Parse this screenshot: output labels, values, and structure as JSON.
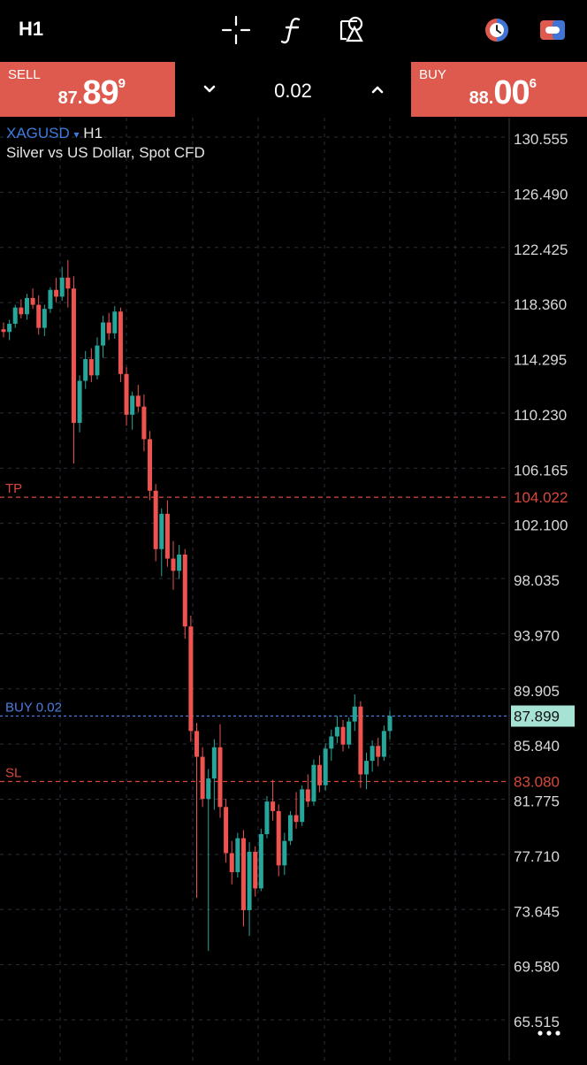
{
  "toolbar": {
    "timeframe": "H1",
    "icons": [
      "crosshair-icon",
      "function-icon",
      "objects-icon",
      "clock-icon",
      "toggle-icon"
    ]
  },
  "trade": {
    "sell_label": "SELL",
    "sell_price_main": "87.",
    "sell_price_big": "89",
    "sell_price_sup": "9",
    "buy_label": "BUY",
    "buy_price_main": "88.",
    "buy_price_big": "00",
    "buy_price_sup": "6",
    "volume": "0.02"
  },
  "chart": {
    "symbol": "XAGUSD",
    "symbol_arrow": "▾",
    "timeframe": "H1",
    "description": "Silver vs US Dollar, Spot CFD",
    "price_axis": [
      "130.555",
      "126.490",
      "122.425",
      "118.360",
      "114.295",
      "110.230",
      "106.165",
      "102.100",
      "98.035",
      "93.970",
      "89.905",
      "85.840",
      "81.775",
      "77.710",
      "73.645",
      "69.580",
      "65.515"
    ],
    "levels": {
      "tp": {
        "label": "TP",
        "price": "104.022"
      },
      "buy": {
        "label": "BUY 0.02",
        "price": "87.899"
      },
      "sl": {
        "label": "SL",
        "price": "83.080"
      }
    },
    "colors": {
      "up": "#26a69a",
      "down": "#ef5350",
      "tp_sl": "#d9483b",
      "buy_line": "#4a7fe0",
      "grid": "#2a2f3a"
    }
  },
  "chart_data": {
    "type": "candlestick",
    "symbol": "XAGUSD",
    "timeframe": "H1",
    "ylim": [
      62.49,
      132.23
    ],
    "ohlc": [
      [
        116.4,
        116.9,
        115.8,
        116.2
      ],
      [
        116.2,
        117.1,
        115.6,
        116.8
      ],
      [
        116.8,
        118.2,
        116.5,
        118.0
      ],
      [
        118.0,
        118.6,
        117.2,
        117.5
      ],
      [
        117.5,
        119.0,
        117.1,
        118.7
      ],
      [
        118.7,
        119.4,
        117.9,
        118.2
      ],
      [
        118.2,
        118.9,
        116.0,
        116.5
      ],
      [
        116.5,
        118.2,
        115.9,
        117.9
      ],
      [
        117.9,
        119.5,
        117.6,
        119.3
      ],
      [
        119.3,
        120.2,
        118.4,
        118.8
      ],
      [
        118.8,
        121.0,
        118.5,
        120.2
      ],
      [
        120.2,
        121.5,
        118.0,
        119.4
      ],
      [
        119.4,
        120.3,
        106.5,
        109.5
      ],
      [
        109.5,
        113.0,
        108.8,
        112.6
      ],
      [
        112.6,
        114.8,
        112.0,
        114.2
      ],
      [
        114.2,
        115.0,
        112.5,
        113.0
      ],
      [
        113.0,
        115.8,
        112.7,
        115.2
      ],
      [
        115.2,
        117.4,
        114.3,
        116.9
      ],
      [
        116.9,
        117.6,
        115.6,
        116.1
      ],
      [
        116.1,
        118.1,
        115.7,
        117.7
      ],
      [
        117.7,
        118.0,
        112.5,
        113.1
      ],
      [
        113.1,
        113.6,
        109.3,
        110.1
      ],
      [
        110.1,
        111.8,
        109.0,
        111.5
      ],
      [
        111.5,
        112.3,
        110.3,
        110.7
      ],
      [
        110.7,
        111.6,
        107.4,
        108.3
      ],
      [
        108.3,
        108.9,
        103.8,
        104.5
      ],
      [
        104.5,
        105.0,
        99.3,
        100.2
      ],
      [
        100.2,
        103.2,
        98.2,
        102.8
      ],
      [
        102.8,
        103.8,
        98.9,
        99.5
      ],
      [
        99.5,
        100.8,
        97.2,
        98.6
      ],
      [
        98.6,
        100.5,
        98.0,
        99.8
      ],
      [
        99.8,
        100.2,
        93.6,
        94.5
      ],
      [
        94.5,
        95.3,
        86.0,
        86.8
      ],
      [
        86.8,
        87.4,
        74.5,
        84.9
      ],
      [
        84.9,
        85.6,
        81.2,
        81.8
      ],
      [
        81.8,
        84.0,
        70.6,
        83.3
      ],
      [
        83.3,
        86.2,
        81.0,
        85.6
      ],
      [
        85.6,
        87.3,
        80.4,
        81.2
      ],
      [
        81.2,
        81.8,
        77.1,
        77.8
      ],
      [
        77.8,
        78.7,
        75.5,
        76.4
      ],
      [
        76.4,
        79.3,
        76.0,
        78.9
      ],
      [
        78.9,
        79.5,
        72.4,
        73.6
      ],
      [
        73.6,
        78.6,
        71.7,
        77.9
      ],
      [
        77.9,
        78.3,
        74.6,
        75.2
      ],
      [
        75.2,
        79.6,
        75.0,
        79.2
      ],
      [
        79.2,
        82.0,
        78.9,
        81.6
      ],
      [
        81.6,
        83.2,
        80.2,
        80.9
      ],
      [
        80.9,
        81.4,
        76.1,
        76.9
      ],
      [
        76.9,
        79.3,
        76.2,
        78.7
      ],
      [
        78.7,
        80.9,
        78.4,
        80.6
      ],
      [
        80.6,
        82.3,
        79.6,
        80.1
      ],
      [
        80.1,
        82.8,
        79.8,
        82.5
      ],
      [
        82.5,
        83.6,
        81.2,
        81.6
      ],
      [
        81.6,
        84.7,
        81.3,
        84.3
      ],
      [
        84.3,
        85.0,
        82.3,
        82.8
      ],
      [
        82.8,
        85.9,
        82.4,
        85.5
      ],
      [
        85.5,
        86.9,
        84.6,
        86.4
      ],
      [
        86.4,
        87.9,
        85.9,
        87.1
      ],
      [
        87.1,
        87.6,
        85.3,
        85.8
      ],
      [
        85.8,
        87.8,
        85.5,
        87.5
      ],
      [
        87.5,
        89.5,
        86.8,
        88.6
      ],
      [
        88.6,
        89.0,
        82.6,
        83.6
      ],
      [
        83.6,
        85.2,
        82.5,
        84.6
      ],
      [
        84.6,
        86.1,
        83.8,
        85.7
      ],
      [
        85.7,
        86.3,
        84.2,
        84.9
      ],
      [
        84.9,
        87.2,
        84.6,
        86.8
      ],
      [
        86.8,
        88.3,
        86.2,
        87.9
      ]
    ]
  }
}
